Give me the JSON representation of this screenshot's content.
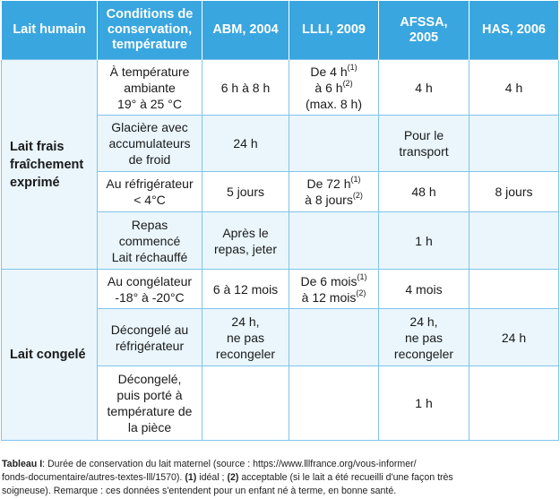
{
  "headers": [
    [
      "Lait humain"
    ],
    [
      "Conditions de",
      "conservation,",
      "température"
    ],
    [
      "ABM, 2004"
    ],
    [
      "LLLI, 2009"
    ],
    [
      "AFSSA,",
      "2005"
    ],
    [
      "HAS, 2006"
    ]
  ],
  "groups": {
    "frais": [
      "Lait frais",
      "fraîchement",
      "exprimé"
    ],
    "congele": [
      "Lait congelé"
    ]
  },
  "rows": {
    "r1": {
      "cond": [
        "À température",
        "ambiante",
        "19° à 25 °C"
      ],
      "abm": "6 h à 8 h",
      "llli_a": "De 4 h",
      "llli_a_sup": "(1)",
      "llli_b": "à 6 h",
      "llli_b_sup": "(2)",
      "llli_c": "(max. 8 h)",
      "afssa": [
        "4 h"
      ],
      "has": "4 h"
    },
    "r2": {
      "cond": [
        "Glacière avec",
        "accumulateurs",
        "de froid"
      ],
      "abm": [
        "24 h"
      ],
      "afssa": [
        "Pour le",
        "transport"
      ]
    },
    "r3": {
      "cond": [
        "Au réfrigérateur",
        "< 4°C"
      ],
      "abm": "5 jours",
      "llli_a": "De 72 h",
      "llli_a_sup": "(1)",
      "llli_b": "à 8 jours",
      "llli_b_sup": "(2)",
      "afssa": [
        "48 h"
      ],
      "has": "8 jours"
    },
    "r4": {
      "cond": [
        "Repas",
        "commencé",
        "Lait réchauffé"
      ],
      "abm": [
        "Après le",
        "repas, jeter"
      ],
      "afssa": [
        "1 h"
      ]
    },
    "r5": {
      "cond": [
        "Au congélateur",
        "-18° à -20°C"
      ],
      "abm": "6 à 12 mois",
      "llli_a": "De 6 mois",
      "llli_a_sup": "(1)",
      "llli_b": "à 12 mois",
      "llli_b_sup": "(2)",
      "afssa": [
        "4 mois"
      ]
    },
    "r6": {
      "cond": [
        "Décongelé au",
        "réfrigérateur"
      ],
      "abm": [
        "24 h,",
        "ne pas",
        "recongeler"
      ],
      "afssa": [
        "24 h,",
        "ne pas",
        "recongeler"
      ],
      "has": "24 h"
    },
    "r7": {
      "cond": [
        "Décongelé,",
        "puis porté à",
        "température de",
        "la pièce"
      ],
      "afssa": [
        "1 h"
      ]
    }
  },
  "caption": {
    "label": "Tableau I",
    "line1": ": Durée de conservation du lait maternel (source : https://www.lllfrance.org/vous-informer/",
    "line2a": "fonds-documentaire/autres-textes-lll/1570). ",
    "line2_b1": "(1)",
    "line2_t1": " idéal ; ",
    "line2_b2": "(2)",
    "line2_t2": " acceptable (si le lait a été recueilli d'une façon très",
    "line3": "soigneuse). Remarque : ces données s'entendent pour un enfant né à terme, en bonne santé."
  }
}
